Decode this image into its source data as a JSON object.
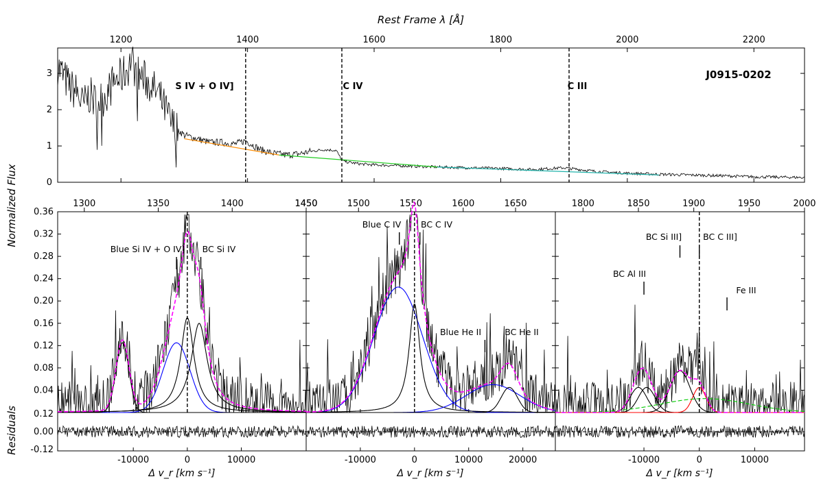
{
  "chart_data": {
    "type": "line",
    "object_name": "J0915-0202",
    "top_axis_title": "Rest Frame λ [Å]",
    "y_axis_title": "Normalized Flux",
    "residuals_title": "Residuals",
    "xlabel_velocity": "Δ v_r [km s⁻¹]",
    "top_panel": {
      "xlim": [
        1100,
        2280
      ],
      "ylim": [
        0,
        3.7
      ],
      "xticks": [
        1200,
        1400,
        1600,
        1800,
        2000,
        2200
      ],
      "yticks": [
        0,
        1,
        2,
        3
      ],
      "dashed_lines": [
        1397,
        1549,
        1908
      ],
      "region_labels": [
        "S IV + O IV]",
        "C IV",
        "C III"
      ],
      "spectrum": {
        "x": [
          1100,
          1110,
          1120,
          1130,
          1140,
          1150,
          1160,
          1170,
          1180,
          1190,
          1200,
          1210,
          1216,
          1225,
          1240,
          1260,
          1280,
          1300,
          1320,
          1340,
          1360,
          1380,
          1397,
          1420,
          1440,
          1460,
          1480,
          1500,
          1520,
          1540,
          1549,
          1560,
          1580,
          1600,
          1650,
          1700,
          1750,
          1800,
          1850,
          1900,
          1950,
          2000,
          2050,
          2100,
          2150,
          2200,
          2250,
          2280
        ],
        "y": [
          3.2,
          2.9,
          2.6,
          2.5,
          2.1,
          2.4,
          2.2,
          2.3,
          2.5,
          2.8,
          2.9,
          3.1,
          3.4,
          3.0,
          2.8,
          2.4,
          1.6,
          1.3,
          1.2,
          1.1,
          1.1,
          1.05,
          1.15,
          0.9,
          0.8,
          0.75,
          0.78,
          0.85,
          0.9,
          0.88,
          0.6,
          0.55,
          0.5,
          0.48,
          0.45,
          0.42,
          0.4,
          0.38,
          0.35,
          0.4,
          0.3,
          0.25,
          0.22,
          0.2,
          0.18,
          0.15,
          0.14,
          0.13
        ]
      },
      "continuum_segments": [
        {
          "color": "#ff8c00",
          "x": [
            1300,
            1450
          ],
          "y": [
            1.2,
            0.75
          ]
        },
        {
          "color": "#22cc22",
          "x": [
            1450,
            1700
          ],
          "y": [
            0.75,
            0.42
          ]
        },
        {
          "color": "#20b2aa",
          "x": [
            1700,
            2050
          ],
          "y": [
            0.42,
            0.2
          ]
        }
      ]
    },
    "secondary_axis": {
      "ticks_panel1": [
        1300,
        1350,
        1400,
        1450
      ],
      "ticks_panel2": [
        1450,
        1500,
        1550,
        1600,
        1650
      ],
      "ticks_panel3": [
        1800,
        1850,
        1900,
        1950,
        2000
      ]
    },
    "bottom_panels": {
      "ylim": [
        0,
        0.36
      ],
      "yticks": [
        "0.04",
        "0.08",
        "0.12",
        "0.16",
        "0.20",
        "0.24",
        "0.28",
        "0.32",
        "0.36"
      ],
      "residual_ylim": [
        -0.13,
        0.13
      ],
      "residual_yticks": [
        "0.12",
        "0.00",
        "-0.12"
      ],
      "panels": [
        {
          "name": "Si IV",
          "xlim": [
            -24000,
            22000
          ],
          "xticks": [
            -10000,
            0,
            10000
          ],
          "annotations": [
            {
              "text": "Blue Si IV + O IV]",
              "x": -2000
            },
            {
              "text": "BC Si IV",
              "x": 2500
            }
          ],
          "components": [
            {
              "color": "#0000ff",
              "center": -2000,
              "amp": 0.125,
              "width": 2500,
              "profile": "gaussian"
            },
            {
              "color": "#000000",
              "center": 0,
              "amp": 0.17,
              "width": 1500,
              "profile": "lorentz"
            },
            {
              "color": "#000000",
              "center": 2200,
              "amp": 0.16,
              "width": 1800,
              "profile": "lorentz"
            },
            {
              "color": "#000000",
              "center": -12000,
              "amp": 0.125,
              "width": 1200,
              "profile": "gaussian"
            }
          ]
        },
        {
          "name": "C IV",
          "xlim": [
            -20000,
            26000
          ],
          "xticks": [
            -10000,
            0,
            10000,
            20000
          ],
          "annotations": [
            {
              "text": "Blue C IV",
              "x": -2800
            },
            {
              "text": "BC C IV",
              "x": 1000
            },
            {
              "text": "Blue He II",
              "x": 13000
            },
            {
              "text": "BC He II",
              "x": 17500
            }
          ],
          "components": [
            {
              "color": "#0000ff",
              "center": -3000,
              "amp": 0.225,
              "width": 4500,
              "profile": "gaussian"
            },
            {
              "color": "#000000",
              "center": 0,
              "amp": 0.195,
              "width": 1200,
              "profile": "lorentz"
            },
            {
              "color": "#0000ff",
              "center": 14500,
              "amp": 0.05,
              "width": 5000,
              "profile": "gaussian"
            },
            {
              "color": "#000000",
              "center": 17500,
              "amp": 0.045,
              "width": 1500,
              "profile": "gaussian"
            }
          ]
        },
        {
          "name": "C III",
          "xlim": [
            -26000,
            19000
          ],
          "xticks": [
            -10000,
            0,
            10000
          ],
          "annotations": [
            {
              "text": "BC Al III",
              "x": -10000
            },
            {
              "text": "BC Si III]",
              "x": -3500
            },
            {
              "text": "BC C III]",
              "x": 0
            },
            {
              "text": "Fe III",
              "x": 5000
            }
          ],
          "components": [
            {
              "color": "#000000",
              "center": -11000,
              "amp": 0.045,
              "width": 1500,
              "profile": "gaussian"
            },
            {
              "color": "#000000",
              "center": -9500,
              "amp": 0.045,
              "width": 1500,
              "profile": "gaussian"
            },
            {
              "color": "#000000",
              "center": -3500,
              "amp": 0.075,
              "width": 1800,
              "profile": "gaussian"
            },
            {
              "color": "#ff0000",
              "center": 0,
              "amp": 0.045,
              "width": 1200,
              "profile": "gaussian"
            },
            {
              "color": "#00cc00",
              "center": 1000,
              "amp": 0.025,
              "width": 8000,
              "profile": "gaussian"
            }
          ]
        }
      ]
    }
  }
}
